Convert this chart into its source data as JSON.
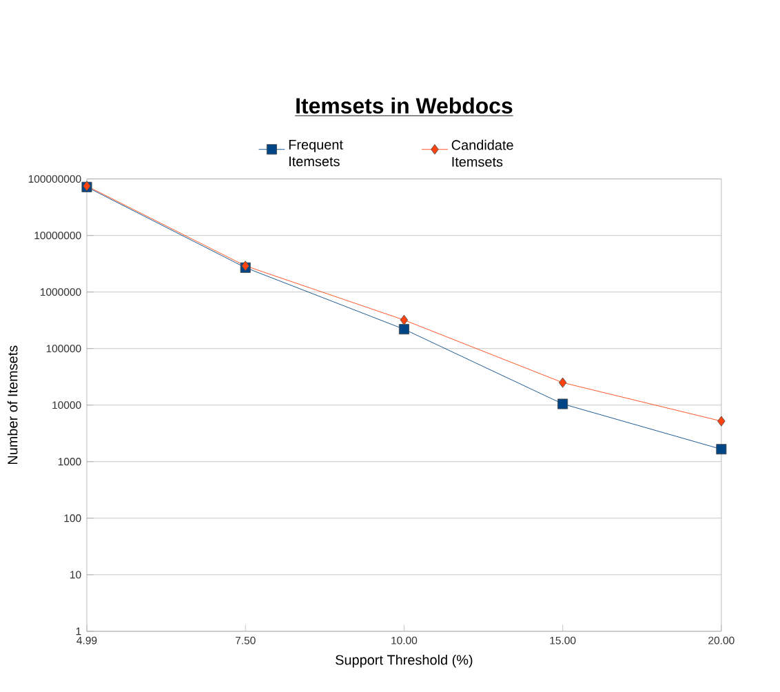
{
  "chart_data": {
    "type": "line",
    "title": "Itemsets in Webdocs",
    "xlabel": "Support Threshold (%)",
    "ylabel": "Number of Itemsets",
    "categories": [
      "4.99",
      "7.50",
      "10.00",
      "15.00",
      "20.00"
    ],
    "series": [
      {
        "name": "Frequent Itemsets",
        "color": "#004586",
        "marker": "square",
        "values": [
          72000000,
          2700000,
          220000,
          10500,
          1660
        ]
      },
      {
        "name": "Candidate Itemsets",
        "color": "#ff420e",
        "marker": "diamond",
        "values": [
          75000000,
          2900000,
          320000,
          25000,
          5200
        ]
      }
    ],
    "log": "y",
    "ylim": [
      1,
      100000000
    ],
    "yticks": [
      1,
      10,
      100,
      1000,
      10000,
      100000,
      1000000,
      10000000,
      100000000
    ],
    "grid": "y",
    "legend": "top"
  }
}
